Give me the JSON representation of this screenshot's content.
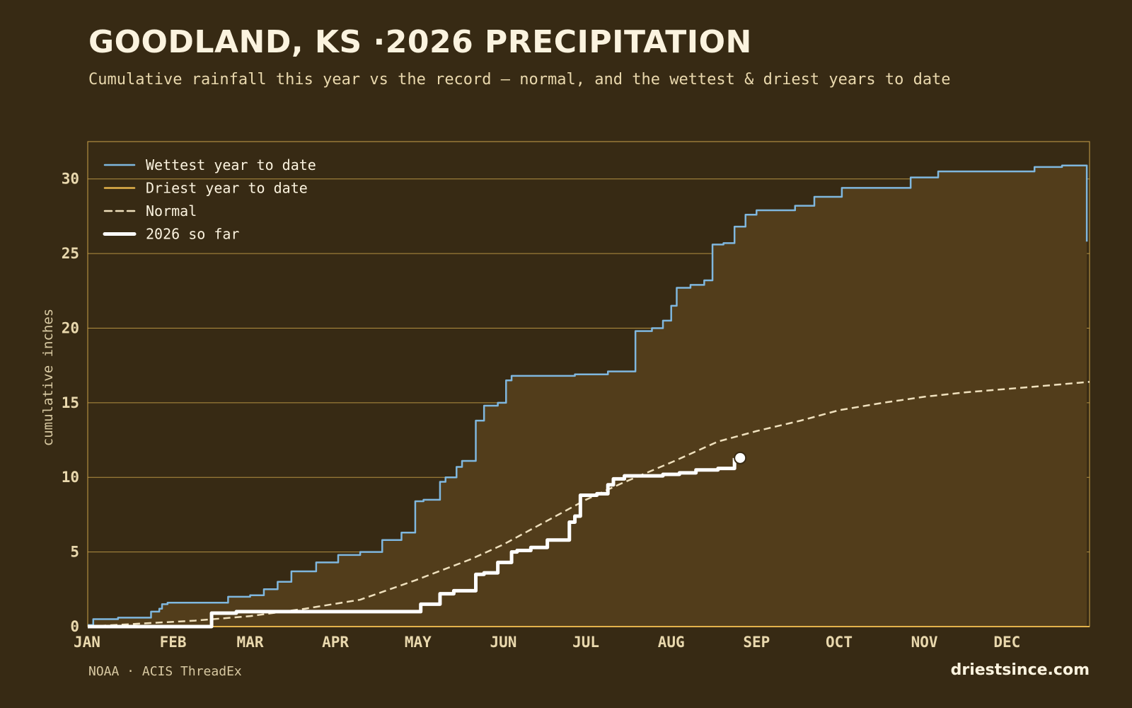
{
  "header": {
    "title": "GOODLAND, KS ·2026 PRECIPITATION",
    "subtitle": "Cumulative rainfall this year vs the record — normal, and the wettest & driest years to date"
  },
  "footer": {
    "source": "NOAA · ACIS ThreadEx",
    "brand": "driestsince.com"
  },
  "colors": {
    "background": "#372a14",
    "band_fill": "#523d1b",
    "grid": "#c9a24a",
    "wettest": "#7fb7de",
    "driest": "#e3b24b",
    "normal": "#efe0bd",
    "current": "#ffffff"
  },
  "chart_data": {
    "type": "line",
    "title": "GOODLAND, KS ·2026 PRECIPITATION",
    "ylabel": "cumulative inches",
    "xlabel": "",
    "ylim": [
      0,
      32.5
    ],
    "xlim": [
      1,
      365
    ],
    "yticks": [
      0,
      5,
      10,
      15,
      20,
      25,
      30
    ],
    "xticks": [
      {
        "label": "JAN",
        "day": 1
      },
      {
        "label": "FEB",
        "day": 32
      },
      {
        "label": "MAR",
        "day": 60
      },
      {
        "label": "APR",
        "day": 91
      },
      {
        "label": "MAY",
        "day": 121
      },
      {
        "label": "JUN",
        "day": 152
      },
      {
        "label": "JUL",
        "day": 182
      },
      {
        "label": "AUG",
        "day": 213
      },
      {
        "label": "SEP",
        "day": 244
      },
      {
        "label": "OCT",
        "day": 274
      },
      {
        "label": "NOV",
        "day": 305
      },
      {
        "label": "DEC",
        "day": 335
      }
    ],
    "grid": true,
    "legend_position": "top-left",
    "series": [
      {
        "name": "Wettest year to date",
        "style": "solid",
        "x": [
          1,
          3,
          10,
          12,
          20,
          24,
          27,
          28,
          30,
          33,
          36,
          39,
          52,
          60,
          65,
          70,
          75,
          84,
          92,
          100,
          108,
          115,
          120,
          123,
          124,
          127,
          129,
          131,
          135,
          137,
          142,
          145,
          147,
          150,
          153,
          155,
          158,
          160,
          164,
          175,
          178,
          190,
          200,
          206,
          210,
          213,
          215,
          220,
          225,
          228,
          232,
          236,
          240,
          244,
          255,
          258,
          265,
          275,
          285,
          300,
          310,
          327,
          339,
          345,
          355,
          360,
          363,
          364
        ],
        "y": [
          0.1,
          0.5,
          0.5,
          0.6,
          0.6,
          1.0,
          1.2,
          1.5,
          1.6,
          1.6,
          1.6,
          1.6,
          2.0,
          2.1,
          2.5,
          3.0,
          3.7,
          4.3,
          4.8,
          5.0,
          5.8,
          6.3,
          8.4,
          8.5,
          8.5,
          8.5,
          9.7,
          10.0,
          10.7,
          11.1,
          13.8,
          14.8,
          14.8,
          15.0,
          16.5,
          16.8,
          16.8,
          16.8,
          16.8,
          16.8,
          16.9,
          17.1,
          19.8,
          20.0,
          20.5,
          21.5,
          22.7,
          22.9,
          23.2,
          25.6,
          25.7,
          26.8,
          27.6,
          27.9,
          27.9,
          28.2,
          28.8,
          29.4,
          29.4,
          30.1,
          30.5,
          30.5,
          30.5,
          30.8,
          30.9,
          30.9,
          30.9,
          25.8
        ]
      },
      {
        "name": "Driest year to date",
        "style": "solid",
        "x": [
          1,
          365
        ],
        "y": [
          0,
          0
        ]
      },
      {
        "name": "Normal",
        "style": "dashed",
        "x": [
          1,
          20,
          40,
          60,
          80,
          100,
          120,
          130,
          140,
          152,
          165,
          182,
          195,
          213,
          230,
          244,
          260,
          274,
          290,
          305,
          320,
          340,
          365
        ],
        "y": [
          0,
          0.2,
          0.4,
          0.7,
          1.2,
          1.8,
          3.1,
          3.8,
          4.5,
          5.5,
          6.8,
          8.5,
          9.6,
          11.0,
          12.4,
          13.1,
          13.8,
          14.5,
          15.0,
          15.4,
          15.7,
          16.0,
          16.4
        ]
      },
      {
        "name": "2026 so far",
        "style": "thick",
        "x": [
          1,
          44,
          46,
          55,
          58,
          120,
          122,
          126,
          129,
          134,
          138,
          142,
          145,
          150,
          155,
          157,
          162,
          168,
          172,
          176,
          178,
          180,
          186,
          190,
          192,
          196,
          210,
          216,
          222,
          230,
          236
        ],
        "y": [
          0,
          0,
          0.9,
          1.0,
          1.0,
          1.0,
          1.5,
          1.5,
          2.2,
          2.4,
          2.4,
          3.5,
          3.6,
          4.3,
          5.0,
          5.1,
          5.3,
          5.8,
          5.8,
          7.0,
          7.4,
          8.8,
          8.9,
          9.5,
          9.9,
          10.1,
          10.2,
          10.3,
          10.5,
          10.6,
          11.3
        ]
      }
    ]
  }
}
